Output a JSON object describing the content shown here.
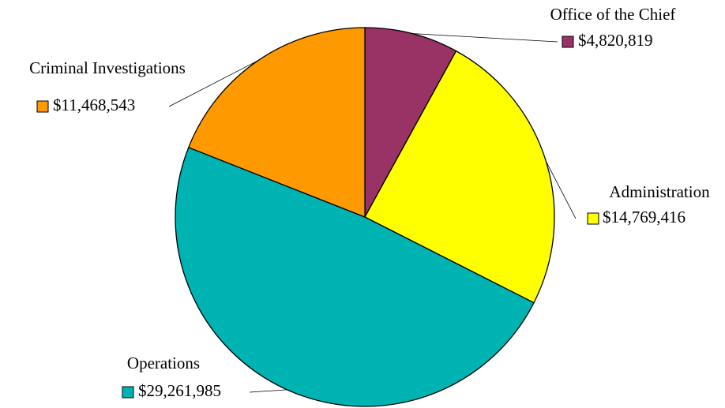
{
  "chart_data": {
    "type": "pie",
    "categories": [
      "Office of the Chief",
      "Administration",
      "Operations",
      "Criminal Investigations"
    ],
    "values": [
      4820819,
      14769416,
      29261985,
      11468543
    ],
    "value_labels": [
      "$4,820,819",
      "$14,769,416",
      "$29,261,985",
      "$11,468,543"
    ],
    "colors": [
      "#993366",
      "#ffff00",
      "#00b3b3",
      "#ff9900"
    ]
  }
}
